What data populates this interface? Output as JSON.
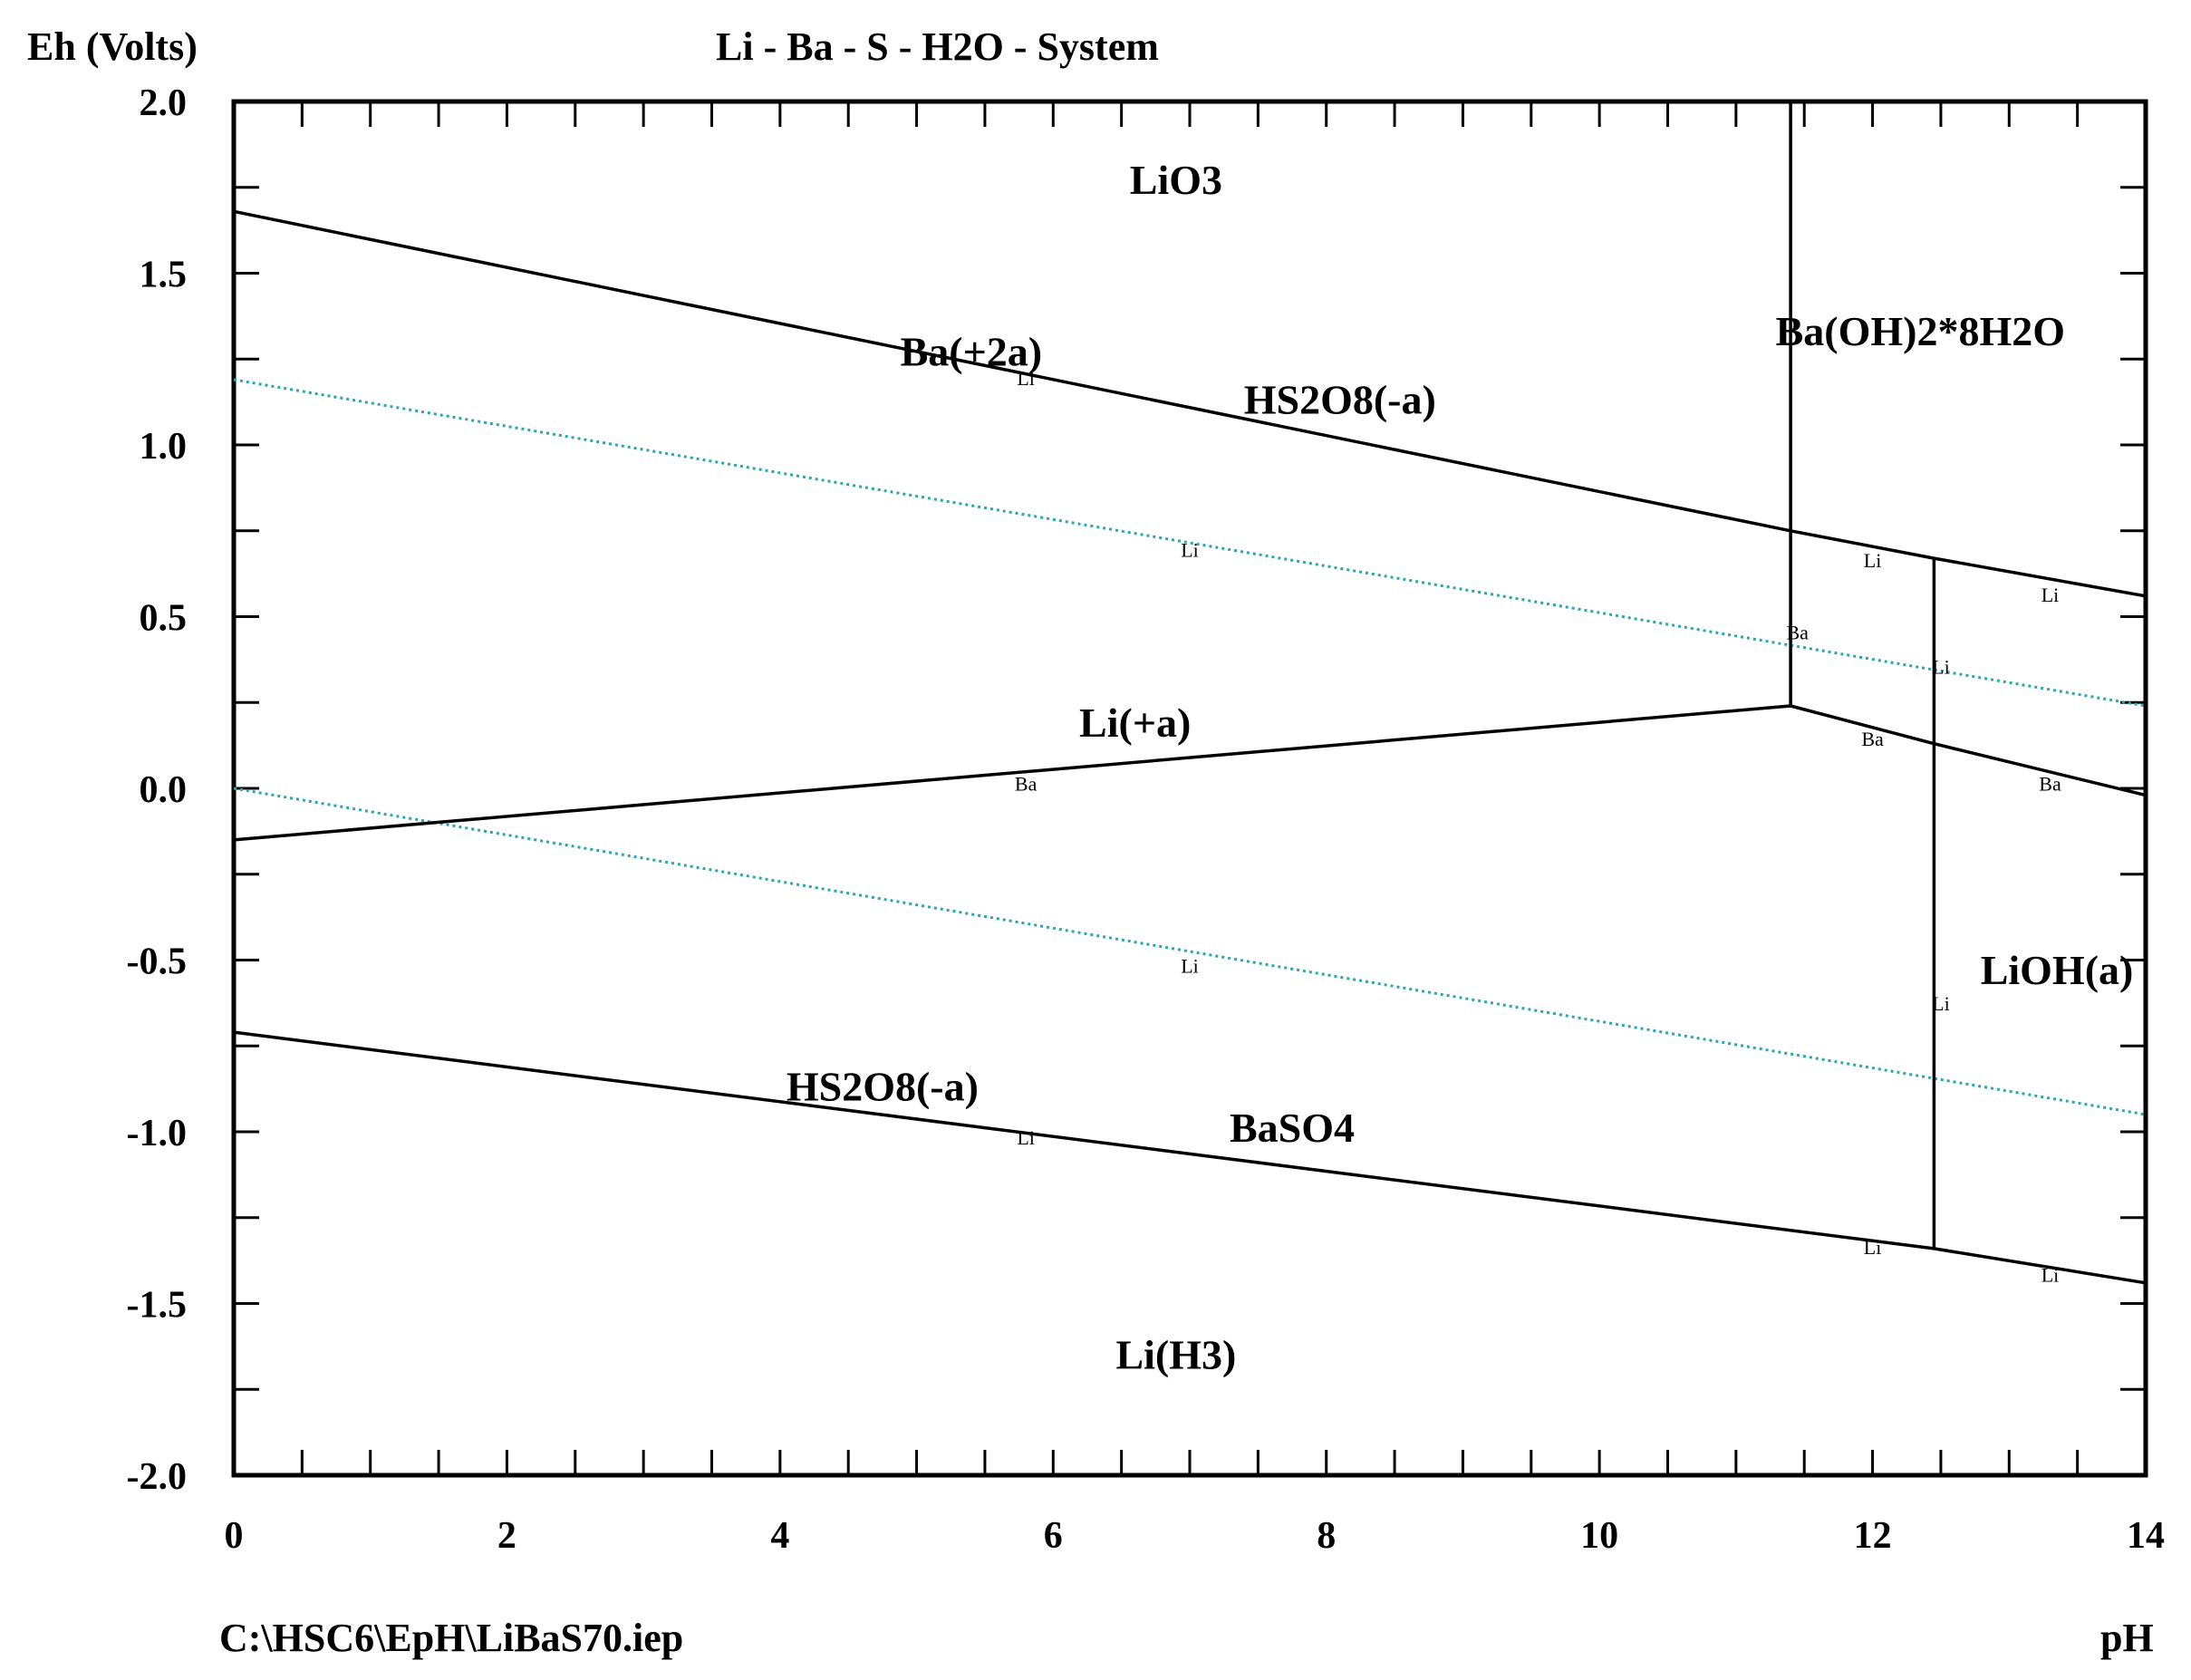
{
  "chart_data": {
    "type": "line",
    "title": "Li - Ba - S - H2O - System",
    "ylabel": "Eh (Volts)",
    "xlabel": "pH",
    "footer": "C:\\HSC6\\EpH\\LiBaS70.iep",
    "xlim": [
      0,
      14
    ],
    "ylim": [
      -2.0,
      2.0
    ],
    "x_ticks": [
      "0",
      "2",
      "4",
      "6",
      "8",
      "10",
      "12",
      "14"
    ],
    "y_ticks": [
      "2.0",
      "1.5",
      "1.0",
      "0.5",
      "0.0",
      "-0.5",
      "-1.0",
      "-1.5",
      "-2.0"
    ],
    "grid": false,
    "boundary_color": "#000000",
    "water_line_color": "#2aa6b0",
    "boundaries": [
      {
        "points": [
          [
            0,
            1.68
          ],
          [
            11.4,
            0.75
          ],
          [
            12.45,
            0.67
          ],
          [
            14,
            0.56
          ]
        ]
      },
      {
        "points": [
          [
            0,
            -0.15
          ],
          [
            11.4,
            0.24
          ]
        ]
      },
      {
        "points": [
          [
            11.4,
            0.24
          ],
          [
            12.45,
            0.13
          ],
          [
            14,
            -0.02
          ]
        ]
      },
      {
        "points": [
          [
            0,
            -0.71
          ],
          [
            12.45,
            -1.34
          ],
          [
            14,
            -1.44
          ]
        ]
      },
      {
        "points": [
          [
            11.4,
            2.0
          ],
          [
            11.4,
            0.24
          ]
        ]
      },
      {
        "points": [
          [
            12.45,
            0.67
          ],
          [
            12.45,
            -1.34
          ]
        ]
      }
    ],
    "water_lines": [
      {
        "points": [
          [
            0,
            1.19
          ],
          [
            14,
            0.24
          ]
        ]
      },
      {
        "points": [
          [
            0,
            0.0
          ],
          [
            14,
            -0.95
          ]
        ]
      }
    ],
    "region_labels": [
      {
        "text": "LiO3",
        "x": 6.9,
        "y": 1.77
      },
      {
        "text": "Ba(+2a)",
        "x": 5.4,
        "y": 1.27
      },
      {
        "text": "HS2O8(-a)",
        "x": 8.1,
        "y": 1.13
      },
      {
        "text": "Ba(OH)2*8H2O",
        "x": 12.35,
        "y": 1.33
      },
      {
        "text": "Li(+a)",
        "x": 6.6,
        "y": 0.19
      },
      {
        "text": "LiOH(a)",
        "x": 13.35,
        "y": -0.53
      },
      {
        "text": "HS2O8(-a)",
        "x": 4.75,
        "y": -0.87
      },
      {
        "text": "BaSO4",
        "x": 7.75,
        "y": -0.99
      },
      {
        "text": "Li(H3)",
        "x": 6.9,
        "y": -1.65
      }
    ],
    "line_tags": [
      {
        "text": "Li",
        "x": 5.8,
        "y": 1.2
      },
      {
        "text": "Li",
        "x": 7.0,
        "y": 0.7
      },
      {
        "text": "Li",
        "x": 12.0,
        "y": 0.67
      },
      {
        "text": "Li",
        "x": 13.3,
        "y": 0.57
      },
      {
        "text": "Ba",
        "x": 11.45,
        "y": 0.46
      },
      {
        "text": "Li",
        "x": 12.5,
        "y": 0.36
      },
      {
        "text": "Ba",
        "x": 12.0,
        "y": 0.15
      },
      {
        "text": "Ba",
        "x": 13.3,
        "y": 0.02
      },
      {
        "text": "Ba",
        "x": 5.8,
        "y": 0.02
      },
      {
        "text": "Li",
        "x": 7.0,
        "y": -0.51
      },
      {
        "text": "Li",
        "x": 12.5,
        "y": -0.62
      },
      {
        "text": "Li",
        "x": 5.8,
        "y": -1.01
      },
      {
        "text": "Li",
        "x": 12.0,
        "y": -1.33
      },
      {
        "text": "Li",
        "x": 13.3,
        "y": -1.41
      }
    ]
  }
}
